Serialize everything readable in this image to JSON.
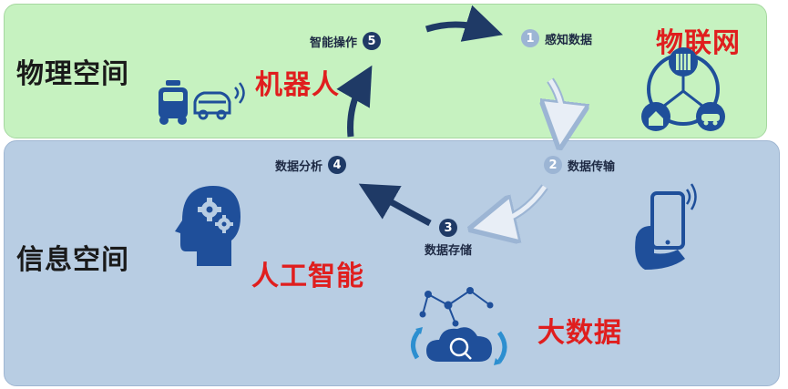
{
  "regions": {
    "physical": "物理空间",
    "info": "信息空间"
  },
  "technologies": {
    "iot": "物联网",
    "robot": "机器人",
    "ai": "人工智能",
    "bigdata": "大数据"
  },
  "steps": [
    {
      "num": "1",
      "label": "感知数据"
    },
    {
      "num": "2",
      "label": "数据传输"
    },
    {
      "num": "3",
      "label": "数据存储"
    },
    {
      "num": "4",
      "label": "数据分析"
    },
    {
      "num": "5",
      "label": "智能操作"
    }
  ],
  "colors": {
    "physical_bg": "#c6f2c0",
    "info_bg": "#b8cde3",
    "highlight": "#e01e1e",
    "icon_blue": "#1f4f9a",
    "badge_dark": "#1f3a66",
    "badge_light": "#9cb5d4"
  },
  "icons": [
    "car-robot-icon",
    "iot-network-icon",
    "head-gears-icon",
    "smartphone-icon",
    "bigdata-cloud-icon"
  ]
}
